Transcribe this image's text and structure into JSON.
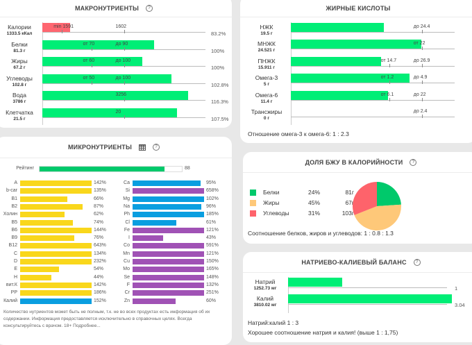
{
  "macro": {
    "title": "МАКРОНУТРИЕНТЫ",
    "help": "?",
    "rows": [
      {
        "name": "Калории",
        "amount": "1333.5 кКал",
        "fill": 0.832,
        "color": "#fe6670",
        "marks": [
          {
            "text": "min 1591",
            "pos": 0.2
          },
          {
            "text": "1602",
            "pos": 0.5
          }
        ],
        "pct": "83.2%"
      },
      {
        "name": "Белки",
        "amount": "81.3 г",
        "fill": 0.712,
        "color": "#00ee76",
        "marks": [
          {
            "text": "от 70",
            "pos": 0.3
          },
          {
            "text": "до 90",
            "pos": 0.5
          }
        ],
        "pct": "100%"
      },
      {
        "name": "Жиры",
        "amount": "67.2 г",
        "fill": 0.638,
        "color": "#00ee76",
        "marks": [
          {
            "text": "от 60",
            "pos": 0.3
          },
          {
            "text": "до 100",
            "pos": 0.5
          }
        ],
        "pct": "100%"
      },
      {
        "name": "Углеводы",
        "amount": "102.8 г",
        "fill": 0.825,
        "color": "#00ee76",
        "marks": [
          {
            "text": "от 50",
            "pos": 0.3
          },
          {
            "text": "до 100",
            "pos": 0.5
          }
        ],
        "pct": "102.8%"
      },
      {
        "name": "Вода",
        "amount": "3786 г",
        "fill": 0.932,
        "color": "#00ee76",
        "marks": [
          {
            "text": "3256",
            "pos": 0.5
          }
        ],
        "pct": "116.3%"
      },
      {
        "name": "Клетчатка",
        "amount": "21.5 г",
        "fill": 0.862,
        "color": "#00ee76",
        "marks": [
          {
            "text": "20",
            "pos": 0.5
          }
        ],
        "pct": "107.5%"
      }
    ]
  },
  "fatty": {
    "title": "ЖИРНЫЕ КИСЛОТЫ",
    "rows": [
      {
        "name": "НЖК",
        "amount": "19.5 г",
        "fill": 0.64,
        "marks": [
          {
            "text": "до 24.4",
            "pos": 0.8
          }
        ]
      },
      {
        "name": "МНЖК",
        "amount": "24.521 г",
        "fill": 0.894,
        "marks": [
          {
            "text": "от 22",
            "pos": 0.8
          }
        ]
      },
      {
        "name": "ПНЖК",
        "amount": "15.911 г",
        "fill": 0.62,
        "marks": [
          {
            "text": "от 14.7",
            "pos": 0.6
          },
          {
            "text": "до 26.9",
            "pos": 0.8
          }
        ]
      },
      {
        "name": "Омега-3",
        "amount": "5 г",
        "fill": 0.815,
        "marks": [
          {
            "text": "от 1.2",
            "pos": 0.6
          },
          {
            "text": "до 4.9",
            "pos": 0.8
          }
        ]
      },
      {
        "name": "Омега-6",
        "amount": "11.4 г",
        "fill": 0.668,
        "marks": [
          {
            "text": "от 6.1",
            "pos": 0.6
          },
          {
            "text": "до 22",
            "pos": 0.8
          }
        ]
      },
      {
        "name": "Трансжиры",
        "amount": "0 г",
        "fill": 0,
        "marks": [
          {
            "text": "до 2.4",
            "pos": 0.8
          }
        ]
      }
    ],
    "ratio": "Отношение омега-3 к омега-6: 1 : 2.3"
  },
  "micro": {
    "title": "МИКРОНУТРИЕНТЫ",
    "rating_label": "Рейтинг",
    "rating_value": "88",
    "rating": 0.88,
    "left": [
      {
        "name": "A",
        "value": "142%",
        "fill": 1.0,
        "color": "#f9d71c"
      },
      {
        "name": "b-car",
        "value": "135%",
        "fill": 1.0,
        "color": "#f9d71c"
      },
      {
        "name": "B1",
        "value": "66%",
        "fill": 0.66,
        "color": "#f9d71c"
      },
      {
        "name": "B2",
        "value": "87%",
        "fill": 0.87,
        "color": "#f9d71c"
      },
      {
        "name": "Холин",
        "value": "62%",
        "fill": 0.62,
        "color": "#f9d71c"
      },
      {
        "name": "B5",
        "value": "74%",
        "fill": 0.74,
        "color": "#f9d71c"
      },
      {
        "name": "B6",
        "value": "144%",
        "fill": 1.0,
        "color": "#f9d71c"
      },
      {
        "name": "B9",
        "value": "76%",
        "fill": 0.76,
        "color": "#f9d71c"
      },
      {
        "name": "B12",
        "value": "643%",
        "fill": 1.0,
        "color": "#f9d71c"
      },
      {
        "name": "C",
        "value": "134%",
        "fill": 1.0,
        "color": "#f9d71c"
      },
      {
        "name": "D",
        "value": "232%",
        "fill": 1.0,
        "color": "#f9d71c"
      },
      {
        "name": "E",
        "value": "54%",
        "fill": 0.54,
        "color": "#f9d71c"
      },
      {
        "name": "H",
        "value": "44%",
        "fill": 0.44,
        "color": "#f9d71c"
      },
      {
        "name": "вит.К",
        "value": "142%",
        "fill": 1.0,
        "color": "#f9d71c"
      },
      {
        "name": "PP",
        "value": "186%",
        "fill": 1.0,
        "color": "#f9d71c"
      },
      {
        "name": "Калий",
        "value": "152%",
        "fill": 1.0,
        "color": "#0a9ee0"
      }
    ],
    "right": [
      {
        "name": "Ca",
        "value": "95%",
        "fill": 0.95,
        "color": "#0a9ee0"
      },
      {
        "name": "Si",
        "value": "658%",
        "fill": 1.0,
        "color": "#a052b5"
      },
      {
        "name": "Mg",
        "value": "102%",
        "fill": 1.0,
        "color": "#0a9ee0"
      },
      {
        "name": "Na",
        "value": "96%",
        "fill": 0.96,
        "color": "#0a9ee0"
      },
      {
        "name": "Ph",
        "value": "185%",
        "fill": 1.0,
        "color": "#0a9ee0"
      },
      {
        "name": "Cl",
        "value": "61%",
        "fill": 0.61,
        "color": "#0a9ee0"
      },
      {
        "name": "Fe",
        "value": "121%",
        "fill": 1.0,
        "color": "#a052b5"
      },
      {
        "name": "I",
        "value": "43%",
        "fill": 0.43,
        "color": "#a052b5"
      },
      {
        "name": "Co",
        "value": "591%",
        "fill": 1.0,
        "color": "#a052b5"
      },
      {
        "name": "Mn",
        "value": "121%",
        "fill": 1.0,
        "color": "#a052b5"
      },
      {
        "name": "Cu",
        "value": "150%",
        "fill": 1.0,
        "color": "#a052b5"
      },
      {
        "name": "Mo",
        "value": "165%",
        "fill": 1.0,
        "color": "#a052b5"
      },
      {
        "name": "Se",
        "value": "148%",
        "fill": 1.0,
        "color": "#a052b5"
      },
      {
        "name": "F",
        "value": "132%",
        "fill": 1.0,
        "color": "#a052b5"
      },
      {
        "name": "Cr",
        "value": "251%",
        "fill": 1.0,
        "color": "#a052b5"
      },
      {
        "name": "Zn",
        "value": "60%",
        "fill": 0.6,
        "color": "#a052b5"
      }
    ],
    "note": "Количество нутриентов может быть не полным, т.к. не во всех продуктах есть информация об их содержании. Информация предоставляется исключительно в справочных целях. Всегда консультируйтесь с врачом. 18+ Подробнее..."
  },
  "bju": {
    "title": "ДОЛЯ БЖУ В КАЛОРИЙНОСТИ",
    "items": [
      {
        "name": "Белки",
        "pct": "24%",
        "grams": "81г",
        "share": 24,
        "color": "#00c96b"
      },
      {
        "name": "Жиры",
        "pct": "45%",
        "grams": "67г",
        "share": 45,
        "color": "#fec879"
      },
      {
        "name": "Углеводы",
        "pct": "31%",
        "grams": "103г",
        "share": 31,
        "color": "#fe636b"
      }
    ],
    "ratio": "Соотношение белков, жиров и углеводов: 1 : 0.8 : 1.3"
  },
  "nak": {
    "title": "НАТРИЕВО-КАЛИЕВЫЙ БАЛАНС",
    "rows": [
      {
        "name": "Натрий",
        "amount": "1252.73 мг",
        "value": "1",
        "fill": 0.33
      },
      {
        "name": "Калий",
        "amount": "3810.02 мг",
        "value": "3.04",
        "fill": 1.0
      }
    ],
    "ratio": "Натрий:калий 1 : 3",
    "verdict": "Хорошее соотношение натрия и калия! (выше 1 : 1,75)"
  }
}
